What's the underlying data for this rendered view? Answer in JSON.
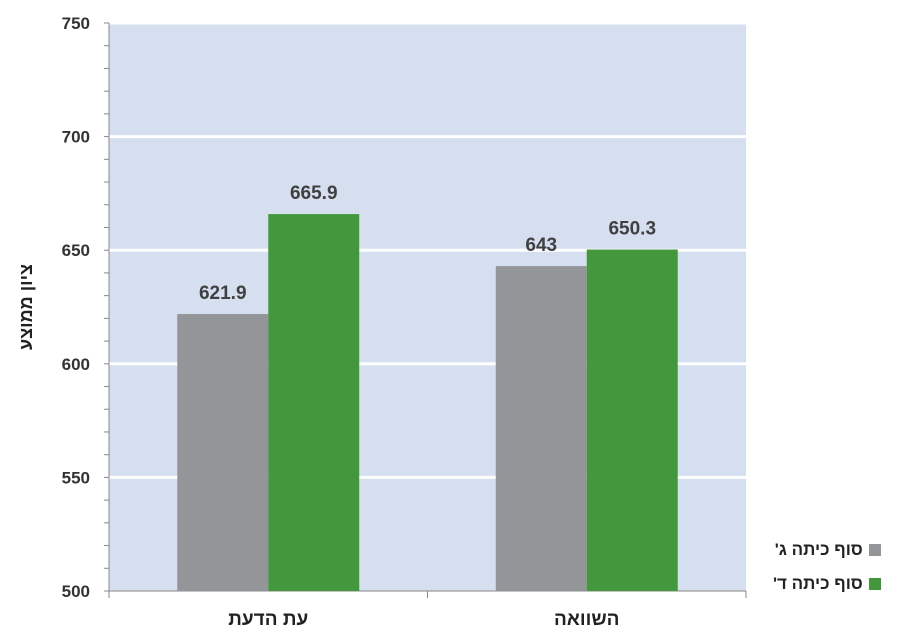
{
  "chart_data": {
    "type": "bar",
    "categories": [
      "עת הדעת",
      "השוואה"
    ],
    "series": [
      {
        "name": "סוף כיתה ג'",
        "values": [
          621.9,
          643
        ],
        "labels": [
          "621.9",
          "643"
        ],
        "color": "#939598"
      },
      {
        "name": "סוף כיתה ד'",
        "values": [
          665.9,
          650.3
        ],
        "labels": [
          "665.9",
          "650.3"
        ],
        "color": "#43983e"
      }
    ],
    "ylabel": "ציון ממוצע",
    "xlabel": "",
    "ylim": [
      500,
      750
    ],
    "yticks": [
      "500",
      "550",
      "600",
      "650",
      "700",
      "750"
    ],
    "grid": true,
    "legend": "bottom-right",
    "plot_background": "#d6dff0",
    "gridline_color": "#ffffff"
  }
}
